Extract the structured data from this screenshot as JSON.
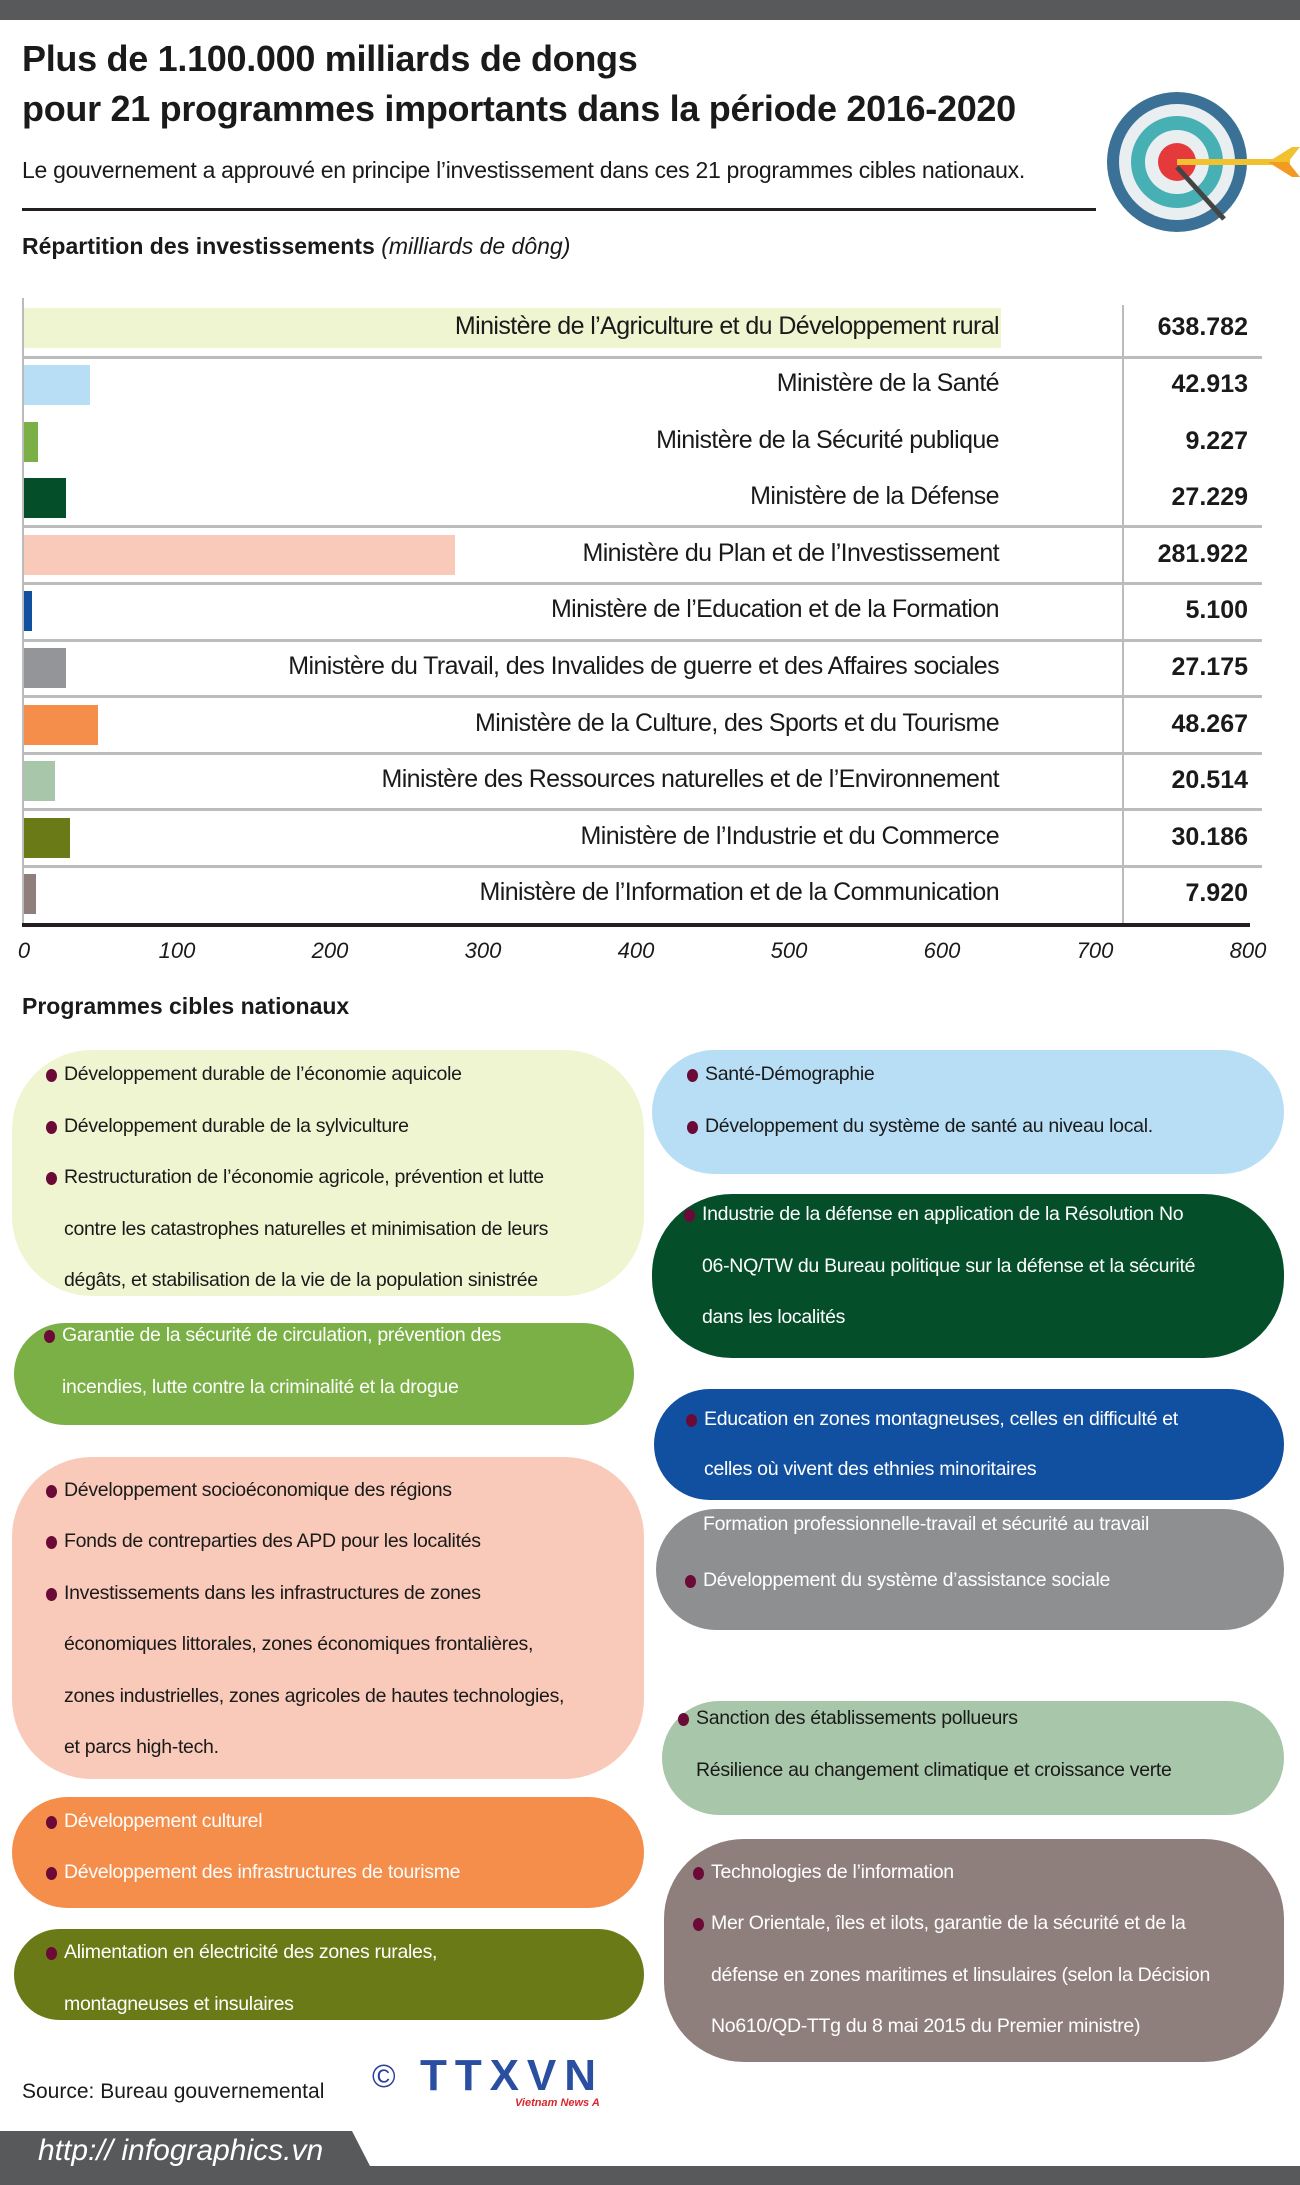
{
  "header": {
    "title_line1": "Plus de 1.100.000 milliards de dongs",
    "title_line2": "pour 21 programmes importants dans la période 2016-2020",
    "subtitle": "Le gouvernement a approuvé en principe l’investissement dans ces 21 programmes cibles nationaux.",
    "icon": "target-arrow-icon"
  },
  "chart_section": {
    "title": "Répartition des investissements",
    "unit": "(milliards de dông)"
  },
  "chart_data": {
    "type": "bar",
    "orientation": "horizontal",
    "title": "Répartition des investissements (milliards de dông)",
    "categories": [
      "Ministère de l’Agriculture et du Développement rural",
      "Ministère de la Santé",
      "Ministère de la Sécurité publique",
      "Ministère de la Défense",
      "Ministère du Plan et de l’Investissement",
      "Ministère de l’Education et de la Formation",
      "Ministère du Travail, des Invalides de guerre et des Affaires sociales",
      "Ministère de la Culture, des Sports et du Tourisme",
      "Ministère des Ressources naturelles et de l’Environnement",
      "Ministère de l’Industrie et du Commerce",
      "Ministère de l’Information et de la Communication"
    ],
    "values": [
      638.782,
      42.913,
      9.227,
      27.229,
      281.922,
      5.1,
      27.175,
      48.267,
      20.514,
      30.186,
      7.92
    ],
    "value_labels": [
      "638.782",
      "42.913",
      "9.227",
      "27.229",
      "281.922",
      "5.100",
      "27.175",
      "48.267",
      "20.514",
      "30.186",
      "7.920"
    ],
    "colors": [
      "#eef5d0",
      "#b8def5",
      "#7ab045",
      "#044f2a",
      "#f9c9b9",
      "#1150a0",
      "#939598",
      "#f58d4b",
      "#a8c6a9",
      "#697a16",
      "#8f7f7c"
    ],
    "xlim": [
      0,
      800
    ],
    "xticks": [
      "0",
      "100",
      "200",
      "300",
      "400",
      "500",
      "600",
      "700",
      "800"
    ],
    "xlabel": "",
    "ylabel": "",
    "grid": false
  },
  "programmes": {
    "title": "Programmes cibles nationaux",
    "boxes": [
      {
        "color": "#eef5d0",
        "text_color": "#1a1a1a",
        "lines": [
          {
            "t": "Développement durable de l’économie aquicole",
            "b": true
          },
          {
            "t": "Développement durable de la sylviculture",
            "b": true
          },
          {
            "t": "Restructuration de l’économie agricole, prévention et lutte",
            "b": true
          },
          {
            "t": "contre les catastrophes naturelles et minimisation de leurs",
            "b": false
          },
          {
            "t": "dégâts, et stabilisation de la vie de la population sinistrée",
            "b": false
          }
        ]
      },
      {
        "color": "#7ab045",
        "text_color": "#ffffff",
        "lines": [
          {
            "t": "Garantie de la sécurité de circulation, prévention des",
            "b": true
          },
          {
            "t": "incendies, lutte contre la criminalité et la drogue",
            "b": false
          }
        ]
      },
      {
        "color": "#f9c9b9",
        "text_color": "#1a1a1a",
        "lines": [
          {
            "t": "Développement socioéconomique des régions",
            "b": true
          },
          {
            "t": "Fonds de contreparties des APD pour les localités",
            "b": true
          },
          {
            "t": "Investissements dans les infrastructures de zones",
            "b": true
          },
          {
            "t": "économiques littorales, zones économiques frontalières,",
            "b": false
          },
          {
            "t": "zones industrielles, zones agricoles de hautes technologies,",
            "b": false
          },
          {
            "t": "et parcs high-tech.",
            "b": false
          }
        ]
      },
      {
        "color": "#f58d4b",
        "text_color": "#ffffff",
        "lines": [
          {
            "t": "Développement culturel",
            "b": true
          },
          {
            "t": "Développement des infrastructures de tourisme",
            "b": true
          }
        ]
      },
      {
        "color": "#697a16",
        "text_color": "#ffffff",
        "lines": [
          {
            "t": "Alimentation en électricité des zones rurales,",
            "b": true
          },
          {
            "t": "montagneuses et insulaires",
            "b": false
          }
        ]
      },
      {
        "color": "#b8def5",
        "text_color": "#1a1a1a",
        "lines": [
          {
            "t": "Santé-Démographie",
            "b": true
          },
          {
            "t": "Développement du système de santé au niveau local.",
            "b": true
          }
        ]
      },
      {
        "color": "#044f2a",
        "text_color": "#ffffff",
        "lines": [
          {
            "t": "Industrie de la défense en application de la Résolution No",
            "b": true
          },
          {
            "t": "06-NQ/TW du Bureau politique sur la défense et la sécurité",
            "b": false
          },
          {
            "t": "dans les localités",
            "b": false
          }
        ]
      },
      {
        "color": "#1150a0",
        "text_color": "#ffffff",
        "lines": [
          {
            "t": "Education en zones montagneuses, celles en difficulté et",
            "b": true
          },
          {
            "t": "celles où vivent des ethnies minoritaires",
            "b": false
          }
        ]
      },
      {
        "color": "#8e8f91",
        "text_color": "#ffffff",
        "lines": [
          {
            "t": "Formation professionnelle-travail et sécurité au travail",
            "b": false
          },
          {
            "t": "Développement du système d’assistance sociale",
            "b": true
          }
        ]
      },
      {
        "color": "#a8c6a9",
        "text_color": "#1a1a1a",
        "lines": [
          {
            "t": "Sanction des établissements pollueurs",
            "b": true
          },
          {
            "t": "Résilience au changement climatique et croissance verte",
            "b": false
          }
        ]
      },
      {
        "color": "#8f7f7c",
        "text_color": "#ffffff",
        "lines": [
          {
            "t": "Technologies de l’information",
            "b": true
          },
          {
            "t": "Mer Orientale, îles et ilots, garantie de la sécurité et de la",
            "b": true
          },
          {
            "t": "défense en zones maritimes et linsulaires (selon la Décision",
            "b": false
          },
          {
            "t": "No610/QD-TTg du 8 mai 2015 du Premier ministre)",
            "b": false
          }
        ]
      }
    ]
  },
  "footer": {
    "source": "Source: Bureau gouvernemental",
    "logo_text": "TTXVN",
    "logo_sub": "Vietnam News Agency",
    "copyright": "©",
    "url": "http:// infographics.vn",
    "bar_color": "#58595b"
  }
}
